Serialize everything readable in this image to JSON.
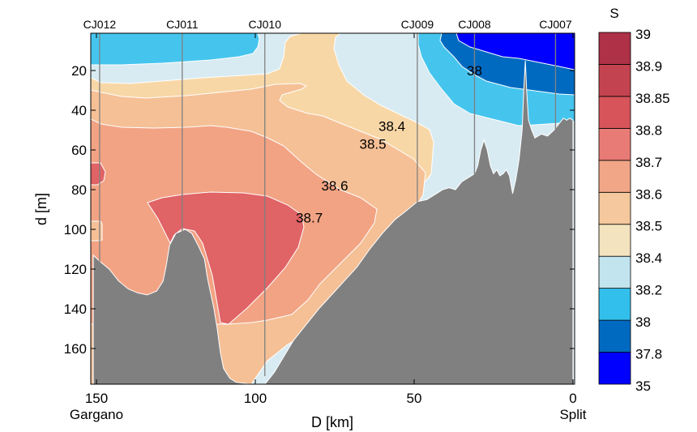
{
  "chart_data": {
    "type": "heatmap",
    "subtype": "filled-contour-section",
    "title": "",
    "xlabel": "D [km]",
    "ylabel": "d [m]",
    "xlim": [
      151,
      0
    ],
    "ylim": [
      178,
      1
    ],
    "x_ticks": [
      150,
      100,
      50,
      0
    ],
    "x_tick_labels": [
      "150",
      "100",
      "50",
      "0"
    ],
    "y_ticks": [
      20,
      40,
      60,
      80,
      100,
      120,
      140,
      160
    ],
    "y_tick_labels": [
      "20",
      "40",
      "60",
      "80",
      "100",
      "120",
      "140",
      "160"
    ],
    "endpoint_labels": [
      {
        "text": "Gargano",
        "x": 150
      },
      {
        "text": "Split",
        "x": 0
      }
    ],
    "stations": [
      {
        "name": "CJ012",
        "x": 149
      },
      {
        "name": "CJ011",
        "x": 123
      },
      {
        "name": "CJ010",
        "x": 97
      },
      {
        "name": "CJ009",
        "x": 49
      },
      {
        "name": "CJ008",
        "x": 31
      },
      {
        "name": "CJ007",
        "x": 5.5
      }
    ],
    "colorbar": {
      "title": "S",
      "levels": [
        "35",
        "37.8",
        "38",
        "38.2",
        "38.4",
        "38.5",
        "38.6",
        "38.7",
        "38.8",
        "38.85",
        "38.9",
        "39"
      ],
      "colors": [
        "#0000ff",
        "#006ac1",
        "#33bfeb",
        "#c1e4ef",
        "#f3e3bf",
        "#f5c89d",
        "#f1a687",
        "#e97b76",
        "#d6545a",
        "#c44350",
        "#ae3147"
      ]
    },
    "contour_labels": [
      {
        "text": "38",
        "x": 31,
        "d": 20
      },
      {
        "text": "38.4",
        "x": 57,
        "d": 48
      },
      {
        "text": "38.5",
        "x": 63,
        "d": 57
      },
      {
        "text": "38.6",
        "x": 75,
        "d": 78
      },
      {
        "text": "38.7",
        "x": 83,
        "d": 94
      }
    ],
    "regions": [
      {
        "value_range": "38.2-38.4",
        "color": "#d8ebf2",
        "poly": [
          [
            151,
            1
          ],
          [
            0,
            1
          ],
          [
            0,
            178
          ],
          [
            151,
            178
          ]
        ]
      },
      {
        "value_range": "38-38.2",
        "color": "#45c5ee",
        "poly": [
          [
            151,
            1
          ],
          [
            96,
            1
          ],
          [
            96.5,
            3
          ],
          [
            97,
            8
          ],
          [
            98,
            12
          ],
          [
            110,
            15
          ],
          [
            130,
            16
          ],
          [
            145,
            17
          ],
          [
            151,
            17
          ]
        ]
      },
      {
        "value_range": "38.4-38.5",
        "color": "#f8d7a7",
        "poly": [
          [
            151,
            21
          ],
          [
            145,
            24
          ],
          [
            130,
            24
          ],
          [
            110,
            22
          ],
          [
            97,
            22
          ],
          [
            85,
            21
          ],
          [
            75,
            19
          ],
          [
            72,
            17
          ],
          [
            71,
            10
          ],
          [
            70,
            4
          ],
          [
            62,
            2
          ],
          [
            74,
            1
          ],
          [
            80,
            1
          ],
          [
            69,
            2
          ],
          [
            65,
            4
          ],
          [
            63,
            14
          ],
          [
            62,
            22
          ],
          [
            60,
            30
          ],
          [
            58,
            32
          ],
          [
            53,
            37
          ],
          [
            47,
            40
          ],
          [
            45,
            45
          ],
          [
            44,
            54
          ],
          [
            43,
            70
          ],
          [
            45,
            78
          ],
          [
            50,
            81
          ],
          [
            52,
            82
          ],
          [
            56,
            87
          ],
          [
            62,
            92
          ],
          [
            68,
            96
          ],
          [
            78,
            101
          ],
          [
            90,
            103
          ],
          [
            100,
            103
          ],
          [
            110,
            102
          ],
          [
            130,
            101
          ],
          [
            151,
            100
          ]
        ]
      },
      {
        "value_range": "38.5-38.6",
        "color": "#f5c096",
        "poly": [
          [
            151,
            27
          ],
          [
            146,
            31
          ],
          [
            130,
            33
          ],
          [
            115,
            33
          ],
          [
            100,
            32
          ],
          [
            88,
            30
          ],
          [
            84,
            29
          ],
          [
            82,
            30
          ],
          [
            86,
            33
          ],
          [
            87,
            38
          ],
          [
            83,
            42
          ],
          [
            76,
            44
          ],
          [
            72,
            45
          ],
          [
            68,
            47
          ],
          [
            64,
            52
          ],
          [
            58,
            55
          ],
          [
            53,
            61
          ],
          [
            51,
            66
          ],
          [
            50,
            70
          ],
          [
            51,
            73
          ],
          [
            52,
            75
          ],
          [
            55,
            77
          ],
          [
            57,
            80
          ],
          [
            59,
            90
          ],
          [
            62,
            100
          ],
          [
            66,
            108
          ],
          [
            72,
            116
          ],
          [
            80,
            124
          ],
          [
            86,
            132
          ],
          [
            90,
            138
          ],
          [
            94,
            148
          ],
          [
            97,
            160
          ],
          [
            98,
            172
          ],
          [
            100,
            178
          ],
          [
            92,
            178
          ],
          [
            84,
            168
          ],
          [
            80,
            160
          ],
          [
            72,
            150
          ],
          [
            66,
            142
          ],
          [
            62,
            132
          ],
          [
            56,
            122
          ],
          [
            52,
            112
          ],
          [
            50,
            104
          ],
          [
            50,
            90
          ],
          [
            51,
            80
          ],
          [
            58,
            73
          ],
          [
            63,
            63
          ],
          [
            68,
            55
          ],
          [
            74,
            48
          ],
          [
            80,
            43
          ],
          [
            85,
            40
          ],
          [
            84,
            38
          ],
          [
            80,
            36
          ],
          [
            75,
            35
          ],
          [
            66,
            34
          ],
          [
            70,
            36
          ],
          [
            78,
            44
          ],
          [
            80,
            46
          ],
          [
            72,
            50
          ],
          [
            62,
            58
          ],
          [
            55,
            68
          ],
          [
            52,
            78
          ],
          [
            51,
            90
          ],
          [
            51,
            104
          ],
          [
            53,
            114
          ],
          [
            57,
            124
          ],
          [
            63,
            134
          ],
          [
            68,
            144
          ],
          [
            73,
            152
          ],
          [
            80,
            160
          ],
          [
            86,
            170
          ],
          [
            92,
            178
          ],
          [
            151,
            178
          ]
        ]
      },
      {
        "value_range": "38.6-38.7",
        "color": "#f2a384",
        "poly": [
          [
            151,
            47
          ],
          [
            146,
            49
          ],
          [
            140,
            51
          ],
          [
            130,
            51
          ],
          [
            115,
            50
          ],
          [
            100,
            49
          ],
          [
            92,
            50
          ],
          [
            85,
            53
          ],
          [
            78,
            58
          ],
          [
            73,
            63
          ],
          [
            70,
            68
          ],
          [
            66,
            72
          ],
          [
            62,
            78
          ],
          [
            61,
            85
          ],
          [
            63,
            92
          ],
          [
            67,
            98
          ],
          [
            72,
            106
          ],
          [
            77,
            114
          ],
          [
            82,
            120
          ],
          [
            87,
            128
          ],
          [
            93,
            138
          ],
          [
            98,
            150
          ],
          [
            100,
            160
          ],
          [
            101,
            166
          ],
          [
            110,
            162
          ],
          [
            115,
            160
          ],
          [
            120,
            158
          ],
          [
            124,
            156
          ],
          [
            130,
            154
          ],
          [
            140,
            150
          ],
          [
            151,
            148
          ]
        ]
      }
    ],
    "bathymetry_color": "#808080"
  }
}
